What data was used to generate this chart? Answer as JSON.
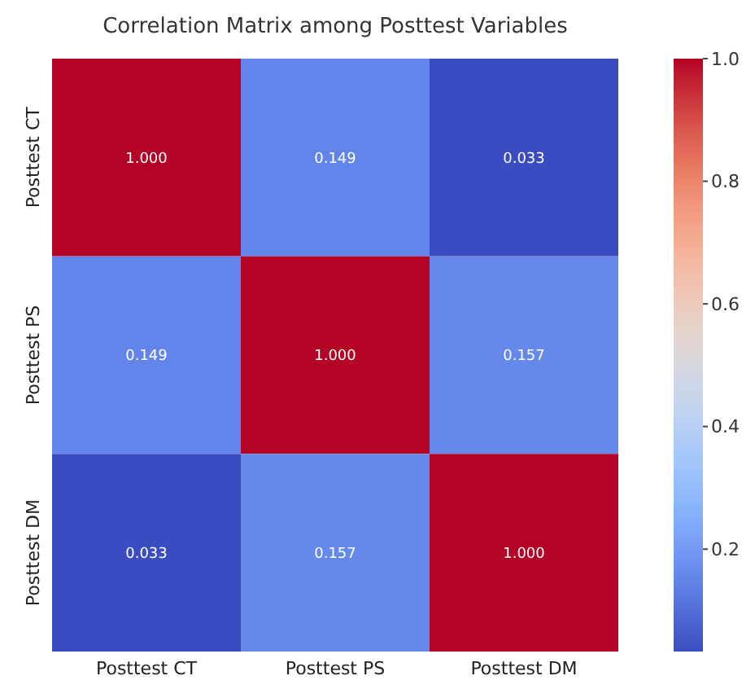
{
  "chart_data": {
    "type": "heatmap",
    "title": "Correlation Matrix among Posttest Variables",
    "categories": [
      "Posttest CT",
      "Posttest PS",
      "Posttest DM"
    ],
    "y_categories": [
      "Posttest CT",
      "Posttest PS",
      "Posttest DM"
    ],
    "cells": [
      [
        1.0,
        0.149,
        0.033
      ],
      [
        0.149,
        1.0,
        0.157
      ],
      [
        0.033,
        0.157,
        1.0
      ]
    ],
    "cell_labels": [
      [
        "1.000",
        "0.149",
        "0.033"
      ],
      [
        "0.149",
        "1.000",
        "0.157"
      ],
      [
        "0.033",
        "0.157",
        "1.000"
      ]
    ],
    "clim": [
      0.033,
      1
    ],
    "cticks": [
      0.2,
      0.4,
      0.6,
      0.8,
      {
        "value": 1,
        "label": "1.0"
      }
    ]
  }
}
